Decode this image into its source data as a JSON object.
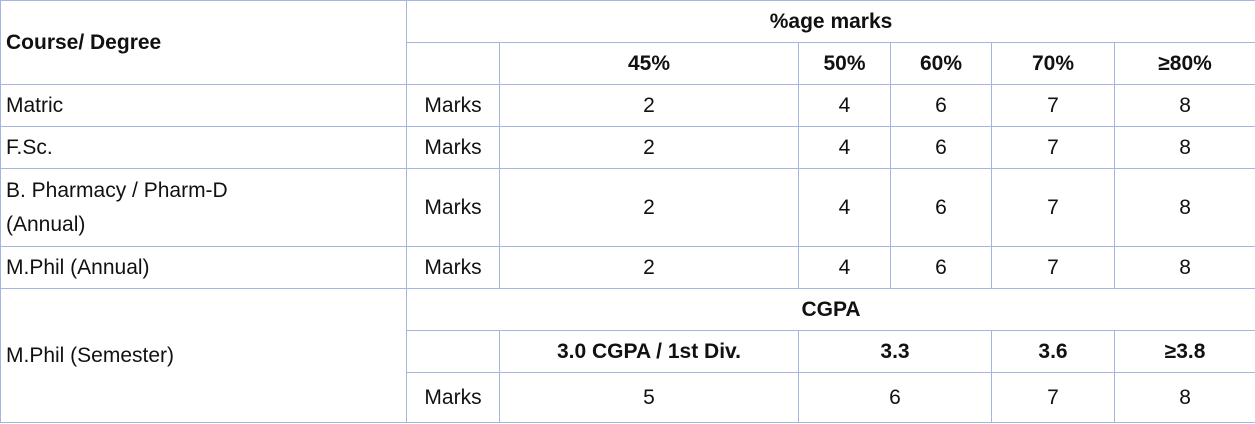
{
  "table": {
    "header": {
      "course": "Course/ Degree",
      "group": "%age marks",
      "levels": [
        "45%",
        "50%",
        "60%",
        "70%",
        "≥80%"
      ]
    },
    "rows": [
      {
        "course": "Matric",
        "label": "Marks",
        "values": [
          2,
          4,
          6,
          7,
          8
        ]
      },
      {
        "course": "F.Sc.",
        "label": "Marks",
        "values": [
          2,
          4,
          6,
          7,
          8
        ]
      },
      {
        "course": "B. Pharmacy / Pharm-D (Annual)",
        "label": "Marks",
        "values": [
          2,
          4,
          6,
          7,
          8
        ]
      },
      {
        "course": "M.Phil (Annual)",
        "label": "Marks",
        "values": [
          2,
          4,
          6,
          7,
          8
        ]
      }
    ],
    "semester": {
      "course": "M.Phil (Semester)",
      "group": "CGPA",
      "levels": [
        "3.0 CGPA / 1st Div.",
        "3.3",
        "3.6",
        "≥3.8"
      ],
      "label": "Marks",
      "values": [
        5,
        6,
        7,
        8
      ]
    }
  }
}
